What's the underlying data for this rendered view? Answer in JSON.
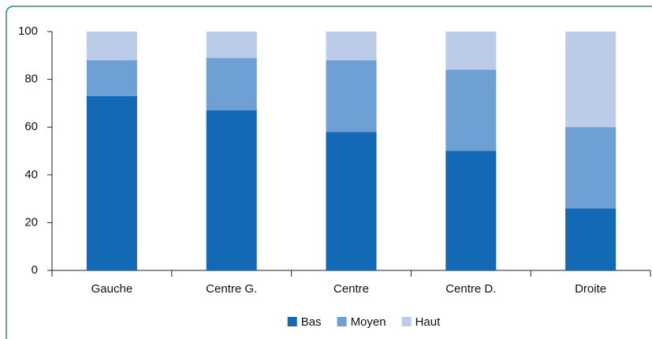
{
  "chart_data": {
    "type": "stacked_bar",
    "categories": [
      "Gauche",
      "Centre G.",
      "Centre",
      "Centre D.",
      "Droite"
    ],
    "series": [
      {
        "name": "Bas",
        "color": "#1369b5",
        "values": [
          73,
          67,
          58,
          50,
          26
        ]
      },
      {
        "name": "Moyen",
        "color": "#6e9fd5",
        "values": [
          15,
          22,
          30,
          34,
          34
        ]
      },
      {
        "name": "Haut",
        "color": "#bccbe8",
        "values": [
          12,
          11,
          12,
          16,
          40
        ]
      }
    ],
    "ylim": [
      0,
      100
    ],
    "yticks": [
      0,
      20,
      40,
      60,
      80,
      100
    ],
    "legend": "bottom"
  }
}
